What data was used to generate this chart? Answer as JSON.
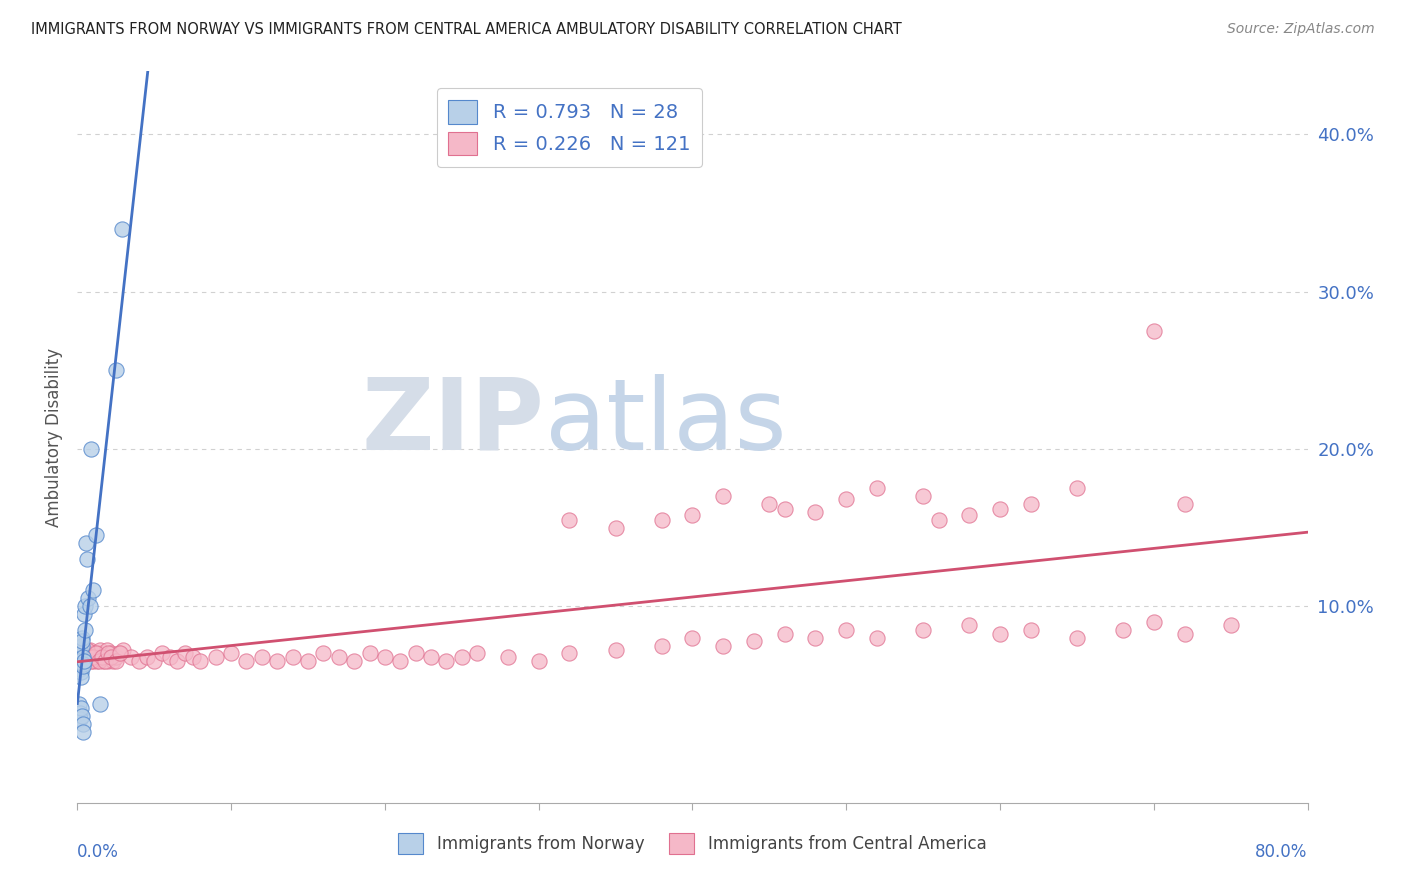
{
  "title": "IMMIGRANTS FROM NORWAY VS IMMIGRANTS FROM CENTRAL AMERICA AMBULATORY DISABILITY CORRELATION CHART",
  "source": "Source: ZipAtlas.com",
  "ylabel": "Ambulatory Disability",
  "xlim": [
    0.0,
    0.8
  ],
  "ylim": [
    -0.025,
    0.44
  ],
  "ytick_vals": [
    0.1,
    0.2,
    0.3,
    0.4
  ],
  "ytick_labels": [
    "10.0%",
    "20.0%",
    "30.0%",
    "40.0%"
  ],
  "norway_R": 0.793,
  "norway_N": 28,
  "central_R": 0.226,
  "central_N": 121,
  "norway_color": "#b8d0e8",
  "norway_edge_color": "#5588cc",
  "norway_line_color": "#4472c4",
  "central_color": "#f5b8c8",
  "central_edge_color": "#e07090",
  "central_line_color": "#d05070",
  "norway_x": [
    0.0008,
    0.001,
    0.0012,
    0.0015,
    0.0018,
    0.002,
    0.0022,
    0.0025,
    0.0028,
    0.003,
    0.0032,
    0.0035,
    0.0038,
    0.004,
    0.0042,
    0.0045,
    0.0048,
    0.005,
    0.0055,
    0.006,
    0.007,
    0.008,
    0.009,
    0.01,
    0.012,
    0.015,
    0.025,
    0.029
  ],
  "norway_y": [
    0.066,
    0.07,
    0.068,
    0.072,
    0.065,
    0.06,
    0.058,
    0.055,
    0.075,
    0.08,
    0.078,
    0.068,
    0.063,
    0.062,
    0.065,
    0.095,
    0.1,
    0.085,
    0.14,
    0.13,
    0.105,
    0.1,
    0.2,
    0.11,
    0.145,
    0.038,
    0.25,
    0.34
  ],
  "central_x": [
    0.001,
    0.0012,
    0.0015,
    0.0018,
    0.002,
    0.0022,
    0.0025,
    0.0028,
    0.003,
    0.0032,
    0.0035,
    0.0038,
    0.004,
    0.0042,
    0.0045,
    0.0048,
    0.005,
    0.0055,
    0.006,
    0.0065,
    0.007,
    0.0075,
    0.008,
    0.009,
    0.01,
    0.011,
    0.012,
    0.013,
    0.014,
    0.015,
    0.016,
    0.017,
    0.018,
    0.019,
    0.02,
    0.021,
    0.022,
    0.023,
    0.025,
    0.027,
    0.03,
    0.035,
    0.04,
    0.045,
    0.05,
    0.055,
    0.06,
    0.065,
    0.07,
    0.075,
    0.08,
    0.09,
    0.1,
    0.11,
    0.12,
    0.13,
    0.14,
    0.15,
    0.16,
    0.17,
    0.18,
    0.19,
    0.2,
    0.21,
    0.22,
    0.23,
    0.24,
    0.25,
    0.26,
    0.28,
    0.3,
    0.32,
    0.35,
    0.38,
    0.4,
    0.42,
    0.44,
    0.46,
    0.48,
    0.5,
    0.52,
    0.55,
    0.58,
    0.6,
    0.62,
    0.65,
    0.68,
    0.7,
    0.72,
    0.75,
    0.0025,
    0.003,
    0.0035,
    0.004,
    0.0045,
    0.005,
    0.0055,
    0.006,
    0.007,
    0.008,
    0.009,
    0.01,
    0.012,
    0.014,
    0.016,
    0.018,
    0.02,
    0.022,
    0.025,
    0.028,
    0.001
  ],
  "central_y": [
    0.068,
    0.072,
    0.065,
    0.07,
    0.068,
    0.065,
    0.07,
    0.072,
    0.068,
    0.065,
    0.07,
    0.065,
    0.068,
    0.072,
    0.07,
    0.065,
    0.068,
    0.065,
    0.07,
    0.068,
    0.065,
    0.07,
    0.072,
    0.068,
    0.065,
    0.07,
    0.068,
    0.065,
    0.07,
    0.072,
    0.068,
    0.065,
    0.068,
    0.072,
    0.065,
    0.068,
    0.07,
    0.065,
    0.068,
    0.07,
    0.072,
    0.068,
    0.065,
    0.068,
    0.065,
    0.07,
    0.068,
    0.065,
    0.07,
    0.068,
    0.065,
    0.068,
    0.07,
    0.065,
    0.068,
    0.065,
    0.068,
    0.065,
    0.07,
    0.068,
    0.065,
    0.07,
    0.068,
    0.065,
    0.07,
    0.068,
    0.065,
    0.068,
    0.07,
    0.068,
    0.065,
    0.07,
    0.072,
    0.075,
    0.08,
    0.075,
    0.078,
    0.082,
    0.08,
    0.085,
    0.08,
    0.085,
    0.088,
    0.082,
    0.085,
    0.08,
    0.085,
    0.09,
    0.082,
    0.088,
    0.075,
    0.068,
    0.07,
    0.072,
    0.065,
    0.068,
    0.07,
    0.072,
    0.065,
    0.068,
    0.065,
    0.068,
    0.07,
    0.065,
    0.068,
    0.065,
    0.07,
    0.068,
    0.065,
    0.07,
    0.072
  ],
  "central_outlier_x": [
    0.32,
    0.42,
    0.45,
    0.48,
    0.52,
    0.55,
    0.62,
    0.65,
    0.7,
    0.72,
    0.35,
    0.38,
    0.4,
    0.46,
    0.5,
    0.56,
    0.58,
    0.6
  ],
  "central_outlier_y": [
    0.155,
    0.17,
    0.165,
    0.16,
    0.175,
    0.17,
    0.165,
    0.175,
    0.275,
    0.165,
    0.15,
    0.155,
    0.158,
    0.162,
    0.168,
    0.155,
    0.158,
    0.162
  ],
  "norway_below_x": [
    0.001,
    0.0015,
    0.002,
    0.0025,
    0.003,
    0.0035,
    0.004
  ],
  "norway_below_y": [
    0.038,
    0.032,
    0.028,
    0.035,
    0.03,
    0.025,
    0.02
  ],
  "watermark_zip": "ZIP",
  "watermark_atlas": "atlas",
  "watermark_zip_color": "#d5dde8",
  "watermark_atlas_color": "#c5d5e8",
  "grid_color": "#cccccc",
  "background_color": "#ffffff"
}
